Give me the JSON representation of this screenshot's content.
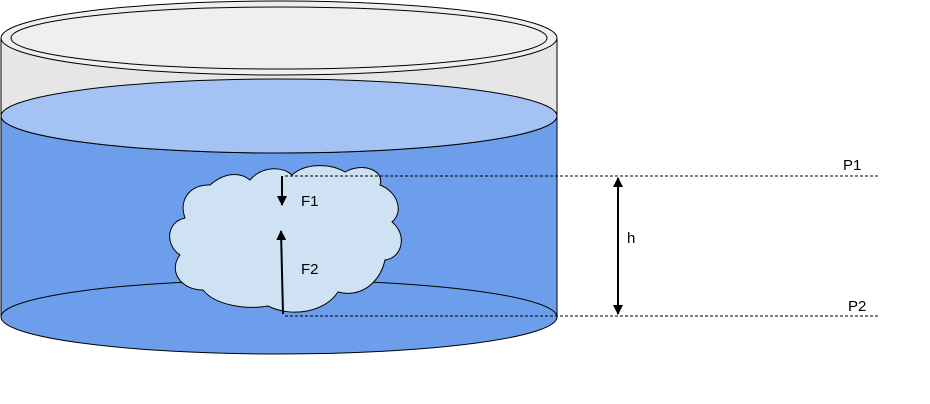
{
  "diagram": {
    "labels": {
      "f1": "F1",
      "f2": "F2",
      "h": "h",
      "p1": "P1",
      "p2": "P2"
    },
    "colors": {
      "background": "#ffffff",
      "container_fill": "#e6e6e6",
      "water_body": "#6d9eeb",
      "water_surface": "#a4c2f4",
      "object_fill": "#cfe2f3",
      "stroke": "#000000"
    }
  }
}
